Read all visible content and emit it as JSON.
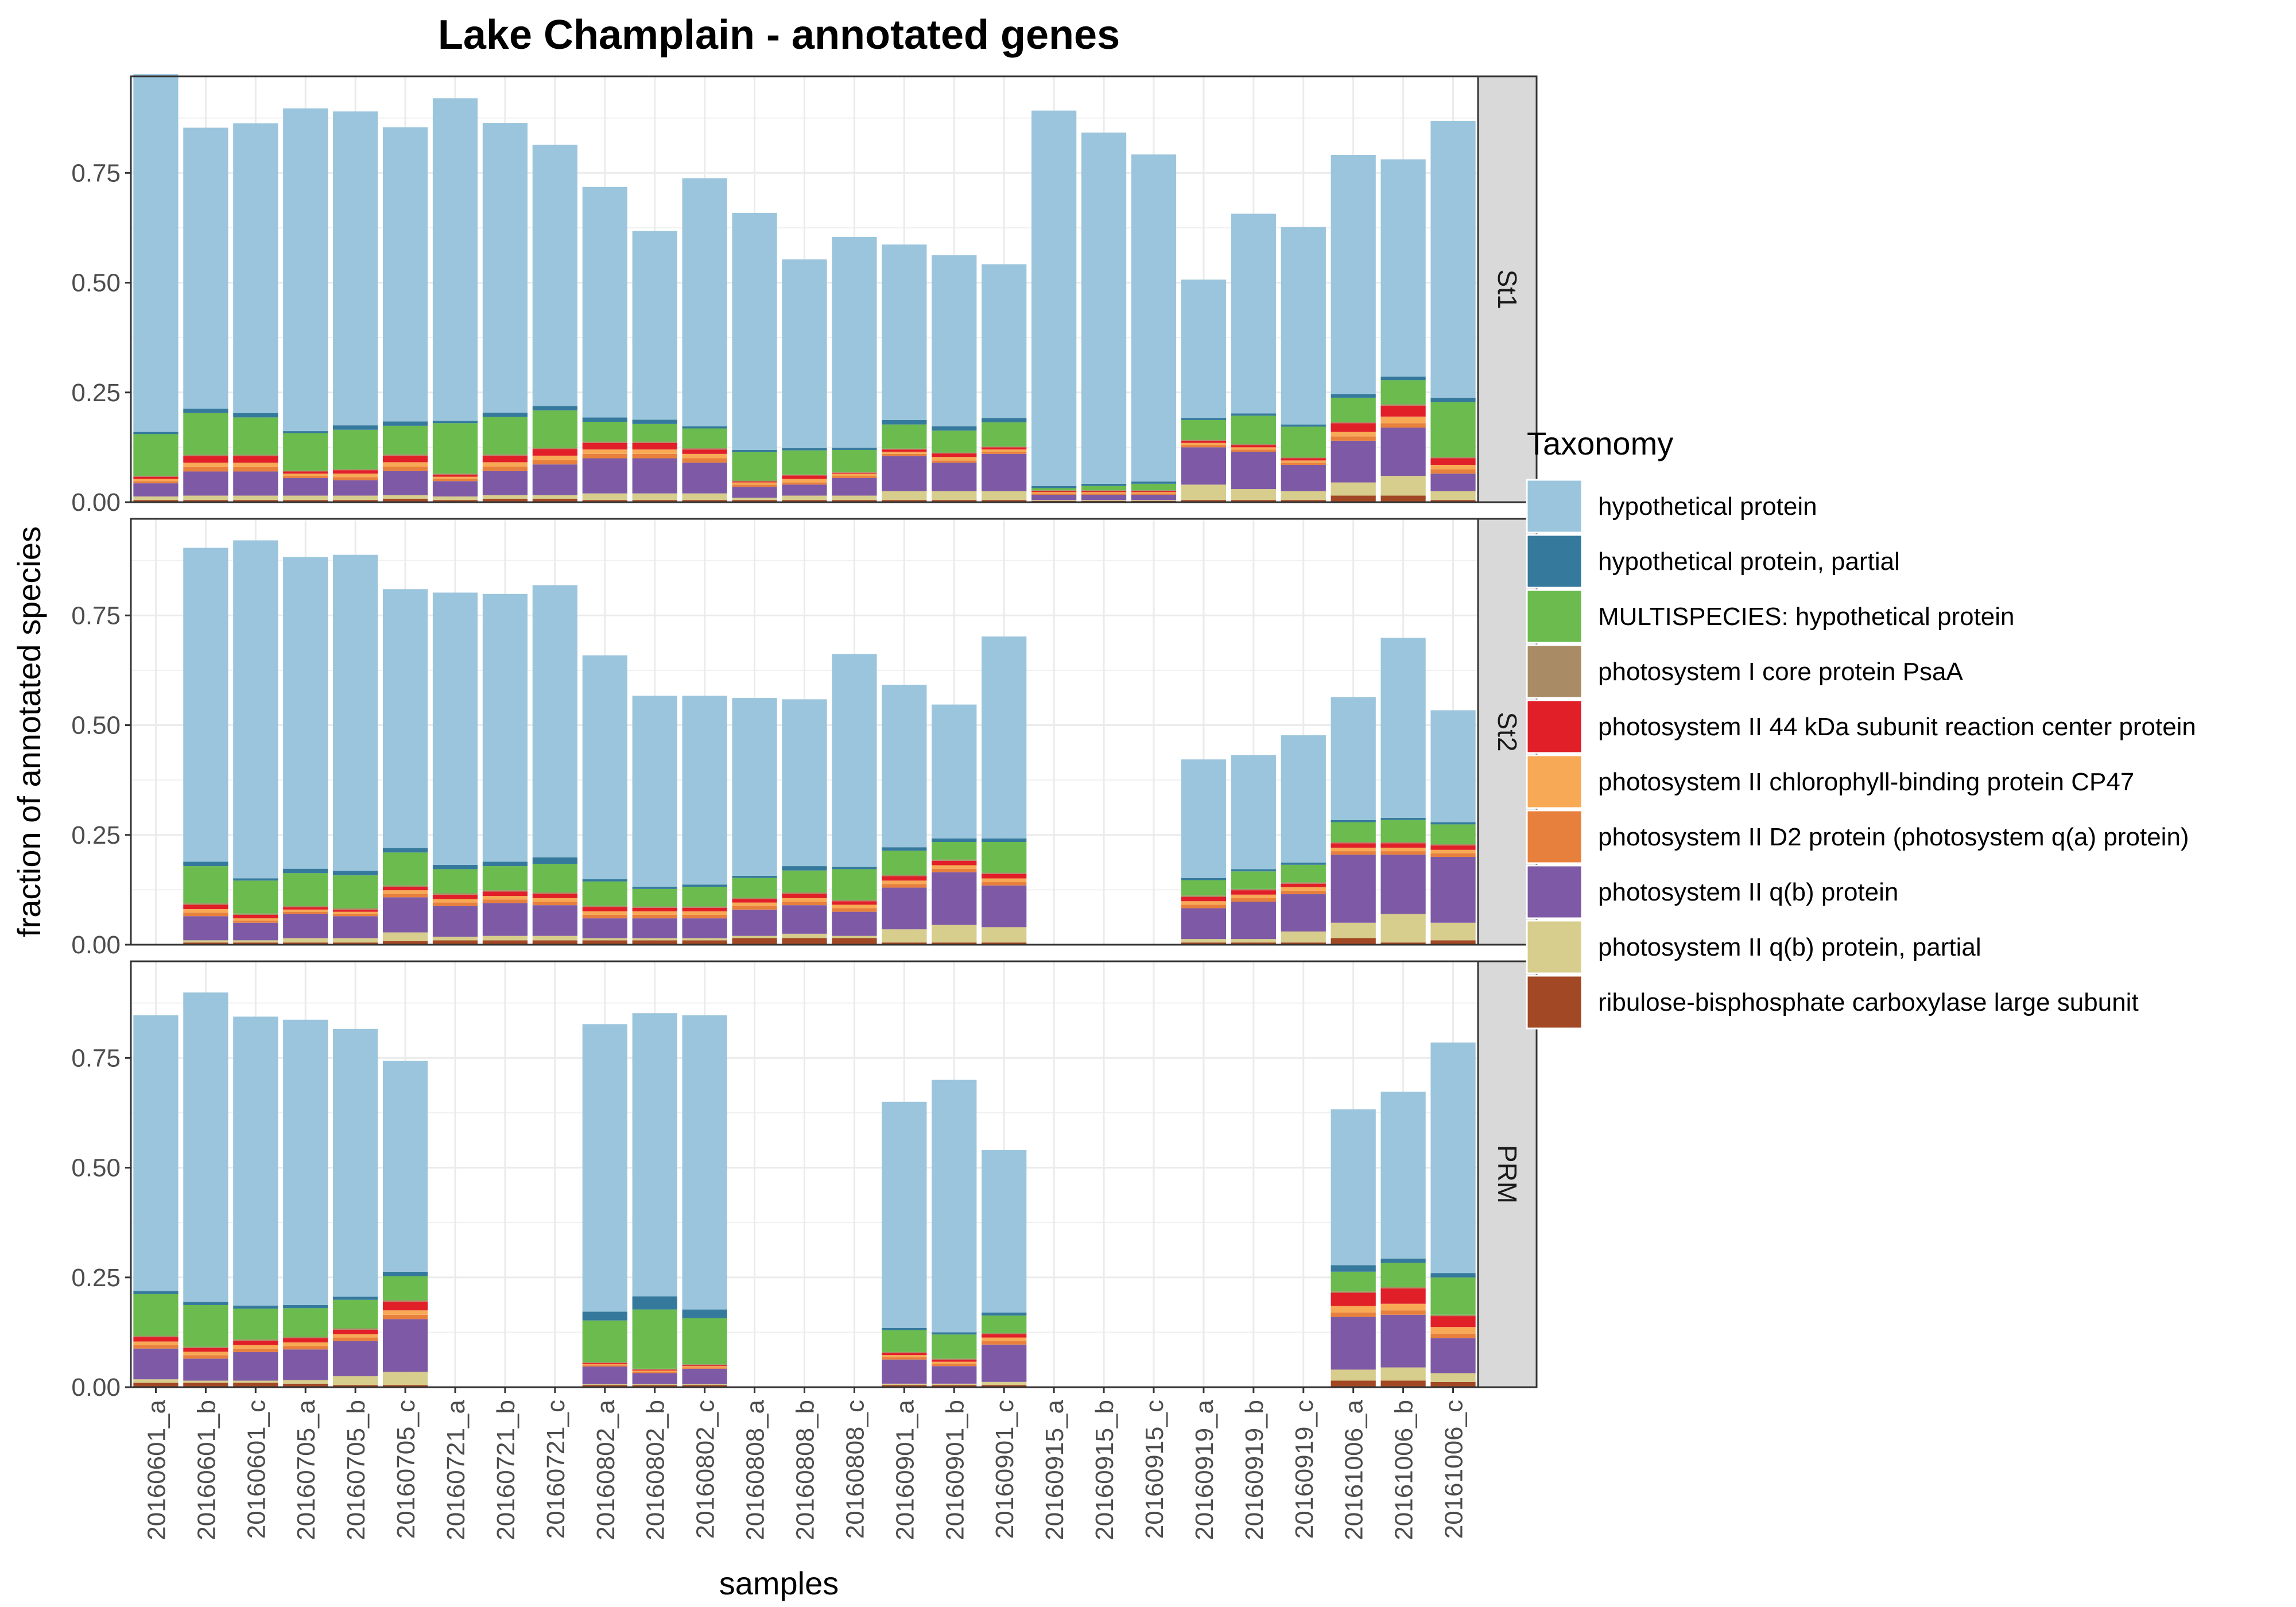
{
  "chart_data": {
    "type": "bar",
    "stacked": true,
    "faceted": true,
    "title": "Lake Champlain - annotated genes",
    "xlabel": "samples",
    "ylabel": "fraction of annotated species",
    "ylim": [
      0,
      0.97
    ],
    "yticks": [
      "0.00",
      "0.25",
      "0.50",
      "0.75"
    ],
    "grid": true,
    "legend_position": "right",
    "legend_title": "Taxonomy",
    "categories": [
      "20160601_a",
      "20160601_b",
      "20160601_c",
      "20160705_a",
      "20160705_b",
      "20160705_c",
      "20160721_a",
      "20160721_b",
      "20160721_c",
      "20160802_a",
      "20160802_b",
      "20160802_c",
      "20160808_a",
      "20160808_b",
      "20160808_c",
      "20160901_a",
      "20160901_b",
      "20160901_c",
      "20160915_a",
      "20160915_b",
      "20160915_c",
      "20160919_a",
      "20160919_b",
      "20160919_c",
      "20161006_a",
      "20161006_b",
      "20161006_c"
    ],
    "taxa": [
      {
        "name": "hypothetical protein",
        "color": "#9BC5DD"
      },
      {
        "name": "hypothetical protein, partial",
        "color": "#357A9C"
      },
      {
        "name": "MULTISPECIES: hypothetical protein",
        "color": "#6BBB4F"
      },
      {
        "name": "photosystem I core protein PsaA",
        "color": "#A98C66"
      },
      {
        "name": "photosystem II 44 kDa subunit reaction center protein",
        "color": "#E11F28"
      },
      {
        "name": "photosystem II chlorophyll-binding protein CP47",
        "color": "#F8A956"
      },
      {
        "name": "photosystem II D2 protein (photosystem q(a) protein)",
        "color": "#E8803D"
      },
      {
        "name": "photosystem II q(b) protein",
        "color": "#7E5AA6"
      },
      {
        "name": "photosystem II q(b) protein, partial",
        "color": "#D7CD8C"
      },
      {
        "name": "ribulose-bisphosphate carboxylase large subunit",
        "color": "#A24824"
      }
    ],
    "panels": [
      {
        "name": "St1",
        "bars": [
          [
            0.815,
            0.005,
            0.095,
            0.002,
            0.005,
            0.005,
            0.005,
            0.03,
            0.008,
            0.005
          ],
          [
            0.64,
            0.01,
            0.095,
            0.003,
            0.015,
            0.01,
            0.01,
            0.055,
            0.01,
            0.005
          ],
          [
            0.66,
            0.01,
            0.085,
            0.003,
            0.015,
            0.01,
            0.01,
            0.055,
            0.01,
            0.005
          ],
          [
            0.735,
            0.005,
            0.085,
            0.002,
            0.005,
            0.005,
            0.005,
            0.04,
            0.01,
            0.005
          ],
          [
            0.715,
            0.01,
            0.09,
            0.002,
            0.008,
            0.008,
            0.007,
            0.035,
            0.01,
            0.005
          ],
          [
            0.67,
            0.01,
            0.065,
            0.003,
            0.015,
            0.01,
            0.01,
            0.055,
            0.008,
            0.008
          ],
          [
            0.735,
            0.005,
            0.115,
            0.002,
            0.005,
            0.005,
            0.005,
            0.035,
            0.008,
            0.005
          ],
          [
            0.66,
            0.01,
            0.085,
            0.003,
            0.015,
            0.01,
            0.01,
            0.055,
            0.008,
            0.008
          ],
          [
            0.595,
            0.01,
            0.085,
            0.003,
            0.015,
            0.01,
            0.01,
            0.07,
            0.008,
            0.008
          ],
          [
            0.525,
            0.01,
            0.045,
            0.003,
            0.015,
            0.01,
            0.01,
            0.08,
            0.015,
            0.005
          ],
          [
            0.43,
            0.01,
            0.04,
            0.003,
            0.015,
            0.01,
            0.01,
            0.08,
            0.015,
            0.005
          ],
          [
            0.565,
            0.005,
            0.045,
            0.003,
            0.01,
            0.01,
            0.01,
            0.07,
            0.015,
            0.005
          ],
          [
            0.54,
            0.005,
            0.065,
            0.002,
            0.002,
            0.005,
            0.005,
            0.025,
            0.005,
            0.005
          ],
          [
            0.43,
            0.005,
            0.055,
            0.002,
            0.008,
            0.008,
            0.005,
            0.025,
            0.01,
            0.005
          ],
          [
            0.48,
            0.005,
            0.05,
            0.002,
            0.002,
            0.005,
            0.005,
            0.04,
            0.01,
            0.005
          ],
          [
            0.4,
            0.01,
            0.055,
            0.002,
            0.005,
            0.005,
            0.005,
            0.08,
            0.02,
            0.005
          ],
          [
            0.39,
            0.01,
            0.05,
            0.002,
            0.008,
            0.008,
            0.005,
            0.065,
            0.02,
            0.005
          ],
          [
            0.35,
            0.01,
            0.055,
            0.002,
            0.005,
            0.005,
            0.005,
            0.085,
            0.02,
            0.005
          ],
          [
            0.855,
            0.005,
            0.005,
            0.002,
            0.002,
            0.003,
            0.003,
            0.012,
            0.002,
            0.003
          ],
          [
            0.8,
            0.005,
            0.01,
            0.002,
            0.002,
            0.003,
            0.003,
            0.012,
            0.002,
            0.003
          ],
          [
            0.745,
            0.005,
            0.015,
            0.002,
            0.002,
            0.003,
            0.003,
            0.012,
            0.002,
            0.003
          ],
          [
            0.315,
            0.005,
            0.045,
            0.002,
            0.005,
            0.005,
            0.005,
            0.085,
            0.035,
            0.005
          ],
          [
            0.455,
            0.005,
            0.065,
            0.002,
            0.005,
            0.005,
            0.005,
            0.085,
            0.025,
            0.005
          ],
          [
            0.45,
            0.005,
            0.07,
            0.002,
            0.005,
            0.005,
            0.005,
            0.06,
            0.02,
            0.005
          ],
          [
            0.545,
            0.008,
            0.055,
            0.003,
            0.02,
            0.01,
            0.01,
            0.095,
            0.03,
            0.015
          ],
          [
            0.495,
            0.008,
            0.055,
            0.003,
            0.025,
            0.015,
            0.01,
            0.11,
            0.045,
            0.015
          ],
          [
            0.63,
            0.01,
            0.125,
            0.003,
            0.015,
            0.01,
            0.01,
            0.04,
            0.02,
            0.005
          ]
        ]
      },
      {
        "name": "St2",
        "bars": [
          null,
          [
            0.715,
            0.01,
            0.085,
            0.003,
            0.01,
            0.008,
            0.008,
            0.055,
            0.005,
            0.005
          ],
          [
            0.77,
            0.005,
            0.075,
            0.003,
            0.008,
            0.005,
            0.005,
            0.04,
            0.005,
            0.005
          ],
          [
            0.71,
            0.01,
            0.075,
            0.003,
            0.005,
            0.005,
            0.005,
            0.055,
            0.01,
            0.005
          ],
          [
            0.72,
            0.01,
            0.075,
            0.003,
            0.005,
            0.005,
            0.005,
            0.05,
            0.01,
            0.005
          ],
          [
            0.59,
            0.01,
            0.075,
            0.003,
            0.008,
            0.008,
            0.008,
            0.08,
            0.02,
            0.008
          ],
          [
            0.62,
            0.01,
            0.055,
            0.003,
            0.01,
            0.008,
            0.008,
            0.07,
            0.008,
            0.01
          ],
          [
            0.61,
            0.01,
            0.055,
            0.003,
            0.01,
            0.008,
            0.008,
            0.075,
            0.01,
            0.01
          ],
          [
            0.62,
            0.015,
            0.065,
            0.003,
            0.01,
            0.008,
            0.008,
            0.07,
            0.01,
            0.01
          ],
          [
            0.51,
            0.005,
            0.055,
            0.003,
            0.01,
            0.008,
            0.008,
            0.045,
            0.005,
            0.01
          ],
          [
            0.435,
            0.005,
            0.04,
            0.003,
            0.008,
            0.008,
            0.008,
            0.045,
            0.005,
            0.01
          ],
          [
            0.43,
            0.005,
            0.045,
            0.003,
            0.008,
            0.008,
            0.008,
            0.045,
            0.005,
            0.01
          ],
          [
            0.405,
            0.005,
            0.045,
            0.003,
            0.008,
            0.008,
            0.008,
            0.06,
            0.005,
            0.015
          ],
          [
            0.38,
            0.01,
            0.05,
            0.003,
            0.01,
            0.008,
            0.008,
            0.065,
            0.01,
            0.015
          ],
          [
            0.485,
            0.005,
            0.07,
            0.003,
            0.008,
            0.008,
            0.008,
            0.055,
            0.005,
            0.015
          ],
          [
            0.37,
            0.008,
            0.055,
            0.003,
            0.01,
            0.008,
            0.008,
            0.095,
            0.03,
            0.005
          ],
          [
            0.305,
            0.008,
            0.04,
            0.003,
            0.01,
            0.008,
            0.008,
            0.12,
            0.04,
            0.005
          ],
          [
            0.46,
            0.008,
            0.07,
            0.003,
            0.01,
            0.008,
            0.008,
            0.095,
            0.035,
            0.005
          ],
          null,
          null,
          null,
          [
            0.27,
            0.005,
            0.035,
            0.003,
            0.01,
            0.008,
            0.008,
            0.07,
            0.008,
            0.005
          ],
          [
            0.26,
            0.005,
            0.04,
            0.003,
            0.01,
            0.008,
            0.008,
            0.085,
            0.008,
            0.005
          ],
          [
            0.29,
            0.005,
            0.04,
            0.003,
            0.008,
            0.008,
            0.008,
            0.085,
            0.025,
            0.005
          ],
          [
            0.28,
            0.005,
            0.045,
            0.003,
            0.01,
            0.008,
            0.008,
            0.155,
            0.035,
            0.015
          ],
          [
            0.41,
            0.005,
            0.05,
            0.003,
            0.01,
            0.008,
            0.008,
            0.135,
            0.065,
            0.005
          ],
          [
            0.255,
            0.005,
            0.045,
            0.003,
            0.01,
            0.008,
            0.008,
            0.15,
            0.04,
            0.01
          ]
        ]
      },
      {
        "name": "PRM",
        "bars": [
          [
            0.628,
            0.007,
            0.095,
            0.003,
            0.01,
            0.008,
            0.008,
            0.07,
            0.008,
            0.01
          ],
          [
            0.705,
            0.007,
            0.095,
            0.003,
            0.008,
            0.008,
            0.008,
            0.05,
            0.005,
            0.01
          ],
          [
            0.658,
            0.007,
            0.07,
            0.003,
            0.01,
            0.008,
            0.008,
            0.065,
            0.005,
            0.01
          ],
          [
            0.65,
            0.007,
            0.065,
            0.003,
            0.01,
            0.008,
            0.008,
            0.07,
            0.008,
            0.008
          ],
          [
            0.61,
            0.007,
            0.065,
            0.003,
            0.01,
            0.008,
            0.008,
            0.08,
            0.02,
            0.005
          ],
          [
            0.48,
            0.01,
            0.055,
            0.003,
            0.02,
            0.01,
            0.01,
            0.12,
            0.03,
            0.005
          ],
          null,
          null,
          null,
          [
            0.655,
            0.02,
            0.095,
            0.002,
            0.002,
            0.003,
            0.003,
            0.04,
            0.002,
            0.005
          ],
          [
            0.645,
            0.03,
            0.135,
            0.002,
            0.002,
            0.003,
            0.003,
            0.025,
            0.002,
            0.005
          ],
          [
            0.67,
            0.02,
            0.105,
            0.002,
            0.002,
            0.003,
            0.003,
            0.035,
            0.002,
            0.005
          ],
          null,
          null,
          null,
          [
            0.515,
            0.005,
            0.05,
            0.002,
            0.005,
            0.005,
            0.005,
            0.055,
            0.003,
            0.005
          ],
          [
            0.575,
            0.005,
            0.055,
            0.002,
            0.005,
            0.005,
            0.005,
            0.04,
            0.003,
            0.005
          ],
          [
            0.37,
            0.007,
            0.04,
            0.002,
            0.008,
            0.008,
            0.008,
            0.085,
            0.007,
            0.005
          ],
          null,
          null,
          null,
          null,
          null,
          null,
          [
            0.355,
            0.015,
            0.045,
            0.003,
            0.03,
            0.015,
            0.01,
            0.12,
            0.025,
            0.015
          ],
          [
            0.38,
            0.01,
            0.055,
            0.003,
            0.035,
            0.015,
            0.01,
            0.12,
            0.03,
            0.015
          ],
          [
            0.525,
            0.01,
            0.085,
            0.003,
            0.025,
            0.015,
            0.01,
            0.08,
            0.02,
            0.012
          ]
        ]
      }
    ]
  }
}
